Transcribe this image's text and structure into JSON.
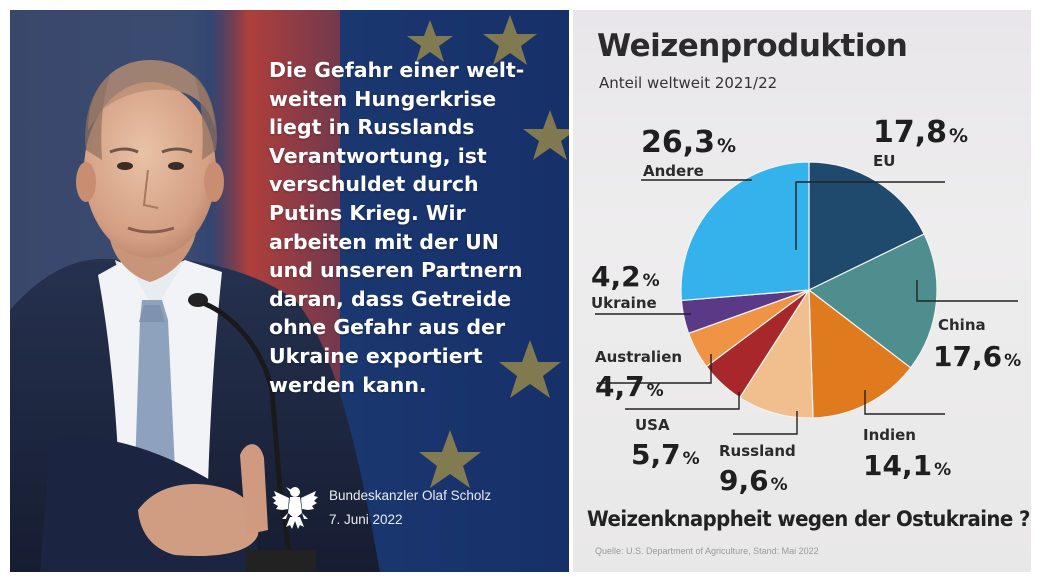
{
  "post": {
    "quote_lines": [
      "Die Gefahr einer welt-",
      "weiten Hungerkrise",
      "liegt in Russlands",
      "Verantwortung, ist",
      "verschuldet durch",
      "Putins Krieg. Wir",
      "arbeiten mit der UN",
      "und unseren Partnern",
      "daran, dass Getreide",
      "ohne Gefahr aus der",
      "Ukraine exportiert",
      "werden kann."
    ],
    "signature_name": "Bundeskanzler Olaf Scholz",
    "signature_date": "7. Juni 2022",
    "colors": {
      "flag_blue": "#1d3a72",
      "flag_red": "#d43a2a",
      "star": "#f2c21a",
      "text": "#ffffff"
    }
  },
  "chart_data": {
    "type": "pie",
    "title": "Weizenproduktion",
    "subtitle": "Anteil weltweit 2021/22",
    "slices": [
      {
        "name": "EU",
        "value": 17.8,
        "display": "17,8",
        "color": "#1f4a6e"
      },
      {
        "name": "China",
        "value": 17.6,
        "display": "17,6",
        "color": "#4e8e8f"
      },
      {
        "name": "Indien",
        "value": 14.1,
        "display": "14,1",
        "color": "#e07a1e"
      },
      {
        "name": "Russland",
        "value": 9.6,
        "display": "9,6",
        "color": "#f1bf8e"
      },
      {
        "name": "USA",
        "value": 5.7,
        "display": "5,7",
        "color": "#a8272a"
      },
      {
        "name": "Australien",
        "value": 4.7,
        "display": "4,7",
        "color": "#ef9345"
      },
      {
        "name": "Ukraine",
        "value": 4.2,
        "display": "4,2",
        "color": "#5a3a86"
      },
      {
        "name": "Andere",
        "value": 26.3,
        "display": "26,3",
        "color": "#33b2ec"
      }
    ],
    "percent_symbol": "%",
    "question": "Weizenknappheit wegen der Ostukraine ?",
    "source": "Quelle: U.S. Department of Agriculture, Stand: Mai 2022"
  }
}
